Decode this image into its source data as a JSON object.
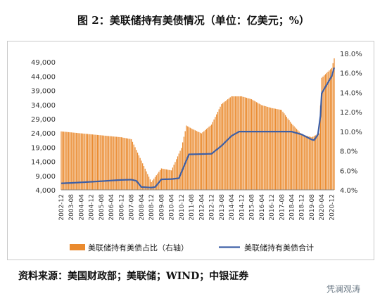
{
  "page": {
    "title": "图 2：美联储持有美债情况（单位：亿美元；%）",
    "source": "资料来源：美国财政部；美联储；WIND；中银证券",
    "watermark": "凭澜观涛"
  },
  "chart_data": {
    "type": "bar",
    "title": "",
    "left_axis": {
      "min": 4000,
      "max": 52000,
      "ticks": [
        4000,
        9000,
        14000,
        19000,
        24000,
        29000,
        34000,
        39000,
        44000,
        49000
      ]
    },
    "right_axis": {
      "min": 0.04,
      "max": 0.18,
      "ticks": [
        "4.0%",
        "6.0%",
        "8.0%",
        "10.0%",
        "12.0%",
        "14.0%",
        "16.0%",
        "18.0%"
      ]
    },
    "x_tick_labels": [
      "2002-12",
      "2003-08",
      "2004-04",
      "2004-12",
      "2005-08",
      "2006-04",
      "2006-12",
      "2007-08",
      "2008-04",
      "2008-12",
      "2009-08",
      "2010-04",
      "2010-12",
      "2011-08",
      "2012-04",
      "2012-12",
      "2013-08",
      "2014-04",
      "2014-12",
      "2015-08",
      "2016-04",
      "2016-12",
      "2017-08",
      "2018-04",
      "2018-12",
      "2019-08",
      "2020-04",
      "2020-12"
    ],
    "series": [
      {
        "name": "美联储持有美债占比（右轴）",
        "kind": "bar",
        "axis": "right",
        "color": "#ea8a2e",
        "x": [
          "2002-12",
          "2003-08",
          "2004-04",
          "2004-12",
          "2005-08",
          "2006-04",
          "2006-12",
          "2007-08",
          "2008-04",
          "2008-12",
          "2009-08",
          "2010-04",
          "2010-12",
          "2011-04",
          "2011-08",
          "2012-04",
          "2012-12",
          "2013-08",
          "2014-04",
          "2014-12",
          "2015-08",
          "2016-04",
          "2016-12",
          "2017-08",
          "2018-04",
          "2018-12",
          "2019-08",
          "2020-02",
          "2020-04",
          "2020-12",
          "2021-02"
        ],
        "values": [
          0.1,
          0.099,
          0.098,
          0.097,
          0.096,
          0.095,
          0.094,
          0.092,
          0.07,
          0.048,
          0.062,
          0.06,
          0.083,
          0.106,
          0.103,
          0.098,
          0.107,
          0.128,
          0.136,
          0.136,
          0.133,
          0.127,
          0.124,
          0.122,
          0.108,
          0.097,
          0.094,
          0.098,
          0.155,
          0.165,
          0.175
        ]
      },
      {
        "name": "美联储持有美债合计",
        "kind": "line",
        "axis": "left",
        "color": "#3d5fa6",
        "x": [
          "2002-12",
          "2003-08",
          "2004-04",
          "2004-12",
          "2005-08",
          "2006-04",
          "2006-12",
          "2007-08",
          "2007-12",
          "2008-04",
          "2008-12",
          "2009-03",
          "2009-08",
          "2010-04",
          "2010-10",
          "2011-06",
          "2012-04",
          "2012-12",
          "2013-08",
          "2014-04",
          "2014-10",
          "2015-08",
          "2016-04",
          "2016-12",
          "2017-08",
          "2018-04",
          "2018-12",
          "2019-08",
          "2019-10",
          "2020-01",
          "2020-03",
          "2020-04",
          "2020-12",
          "2021-02"
        ],
        "values": [
          6300,
          6450,
          6650,
          6850,
          7050,
          7300,
          7500,
          7600,
          7200,
          5000,
          4800,
          5000,
          7700,
          7800,
          8100,
          16500,
          16600,
          16700,
          19500,
          23000,
          24500,
          24500,
          24500,
          24500,
          24500,
          24500,
          23500,
          21700,
          21500,
          23500,
          30000,
          38000,
          44000,
          47000
        ]
      }
    ],
    "legend": {
      "position": "bottom",
      "items": [
        "美联储持有美债占比（右轴）",
        "美联储持有美债合计"
      ]
    },
    "grid": false
  }
}
